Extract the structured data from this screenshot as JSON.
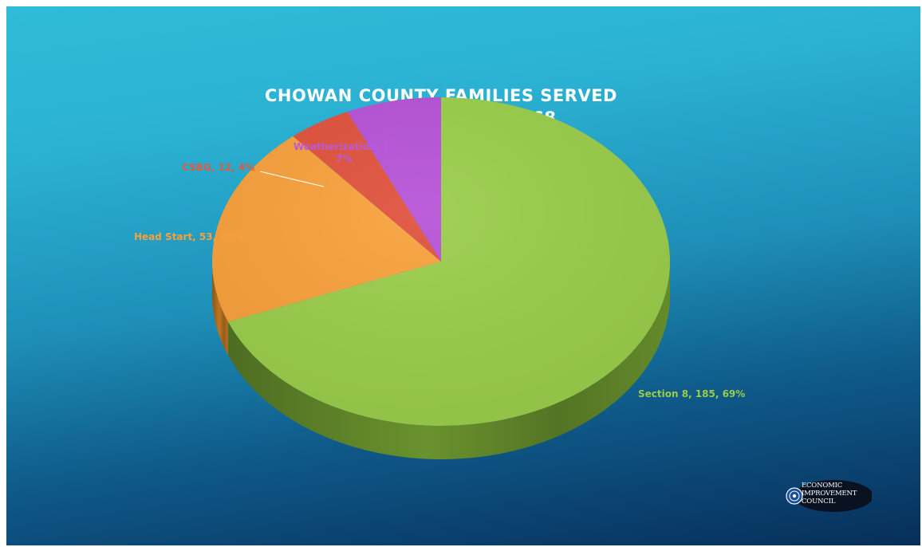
{
  "chart_data": {
    "type": "pie",
    "title": "CHOWAN COUNTY FAMILIES SERVED",
    "subtitle": "TOTAL: 268",
    "slices": [
      {
        "name": "Section 8",
        "value": 185,
        "percent": "69%",
        "label": "Section 8, 185, 69%",
        "color": "#9acd4a",
        "side_color": "#6f9a30"
      },
      {
        "name": "Head Start",
        "value": 53,
        "percent": "20%",
        "label": "Head Start, 53, 20%",
        "color": "#f8a03a",
        "side_color": "#c97b22"
      },
      {
        "name": "CSBG",
        "value": 12,
        "percent": "4%",
        "label": "CSBG, 12, 4%",
        "color": "#e0503a",
        "side_color": "#a93a28"
      },
      {
        "name": "Weatherization",
        "value": 18,
        "percent": "7%",
        "label_line1": "Weatherization, 18,",
        "label_line2": "7%",
        "color": "#b651d6",
        "side_color": "#8a3ba3"
      }
    ],
    "label_colors": {
      "Section 8": "#9acd4a",
      "Head Start": "#f8a03a",
      "CSBG": "#e25a3c",
      "Weatherization": "#b95adb"
    }
  },
  "logo": {
    "line1": "ECONOMIC",
    "line2": "IMPROVEMENT",
    "line3": "COUNCIL"
  }
}
